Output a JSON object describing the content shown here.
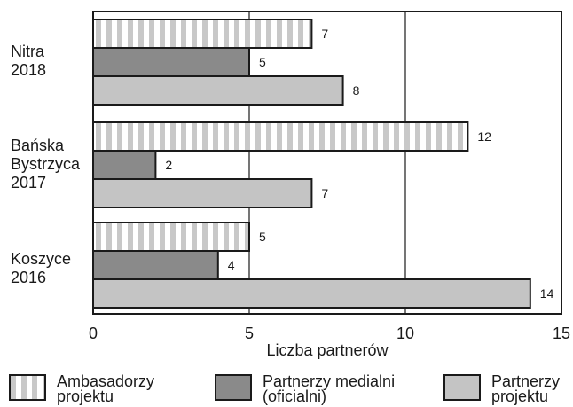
{
  "chart_data": {
    "type": "bar",
    "orientation": "horizontal",
    "categories": [
      "Nitra\n2018",
      "Bańska\nBystrzyca\n2017",
      "Koszyce\n2016"
    ],
    "series": [
      {
        "name": "Ambasadorzy\nprojektu",
        "values": [
          7,
          12,
          5
        ],
        "pattern": "vertical-stripes",
        "color": "#ffffff",
        "stripe_color": "#c8c8c8"
      },
      {
        "name": "Partnerzy medialni\n(oficialni)",
        "values": [
          5,
          2,
          4
        ],
        "pattern": "solid",
        "color": "#8a8a8a"
      },
      {
        "name": "Partnerzy\nprojektu",
        "values": [
          8,
          7,
          14
        ],
        "pattern": "solid",
        "color": "#c4c4c4"
      }
    ],
    "xlabel": "Liczba partnerów",
    "ylabel": "",
    "xlim": [
      0,
      15
    ],
    "xticks": [
      0,
      5,
      10,
      15
    ],
    "grid": "vertical",
    "legend_position": "bottom",
    "data_labels": true
  }
}
